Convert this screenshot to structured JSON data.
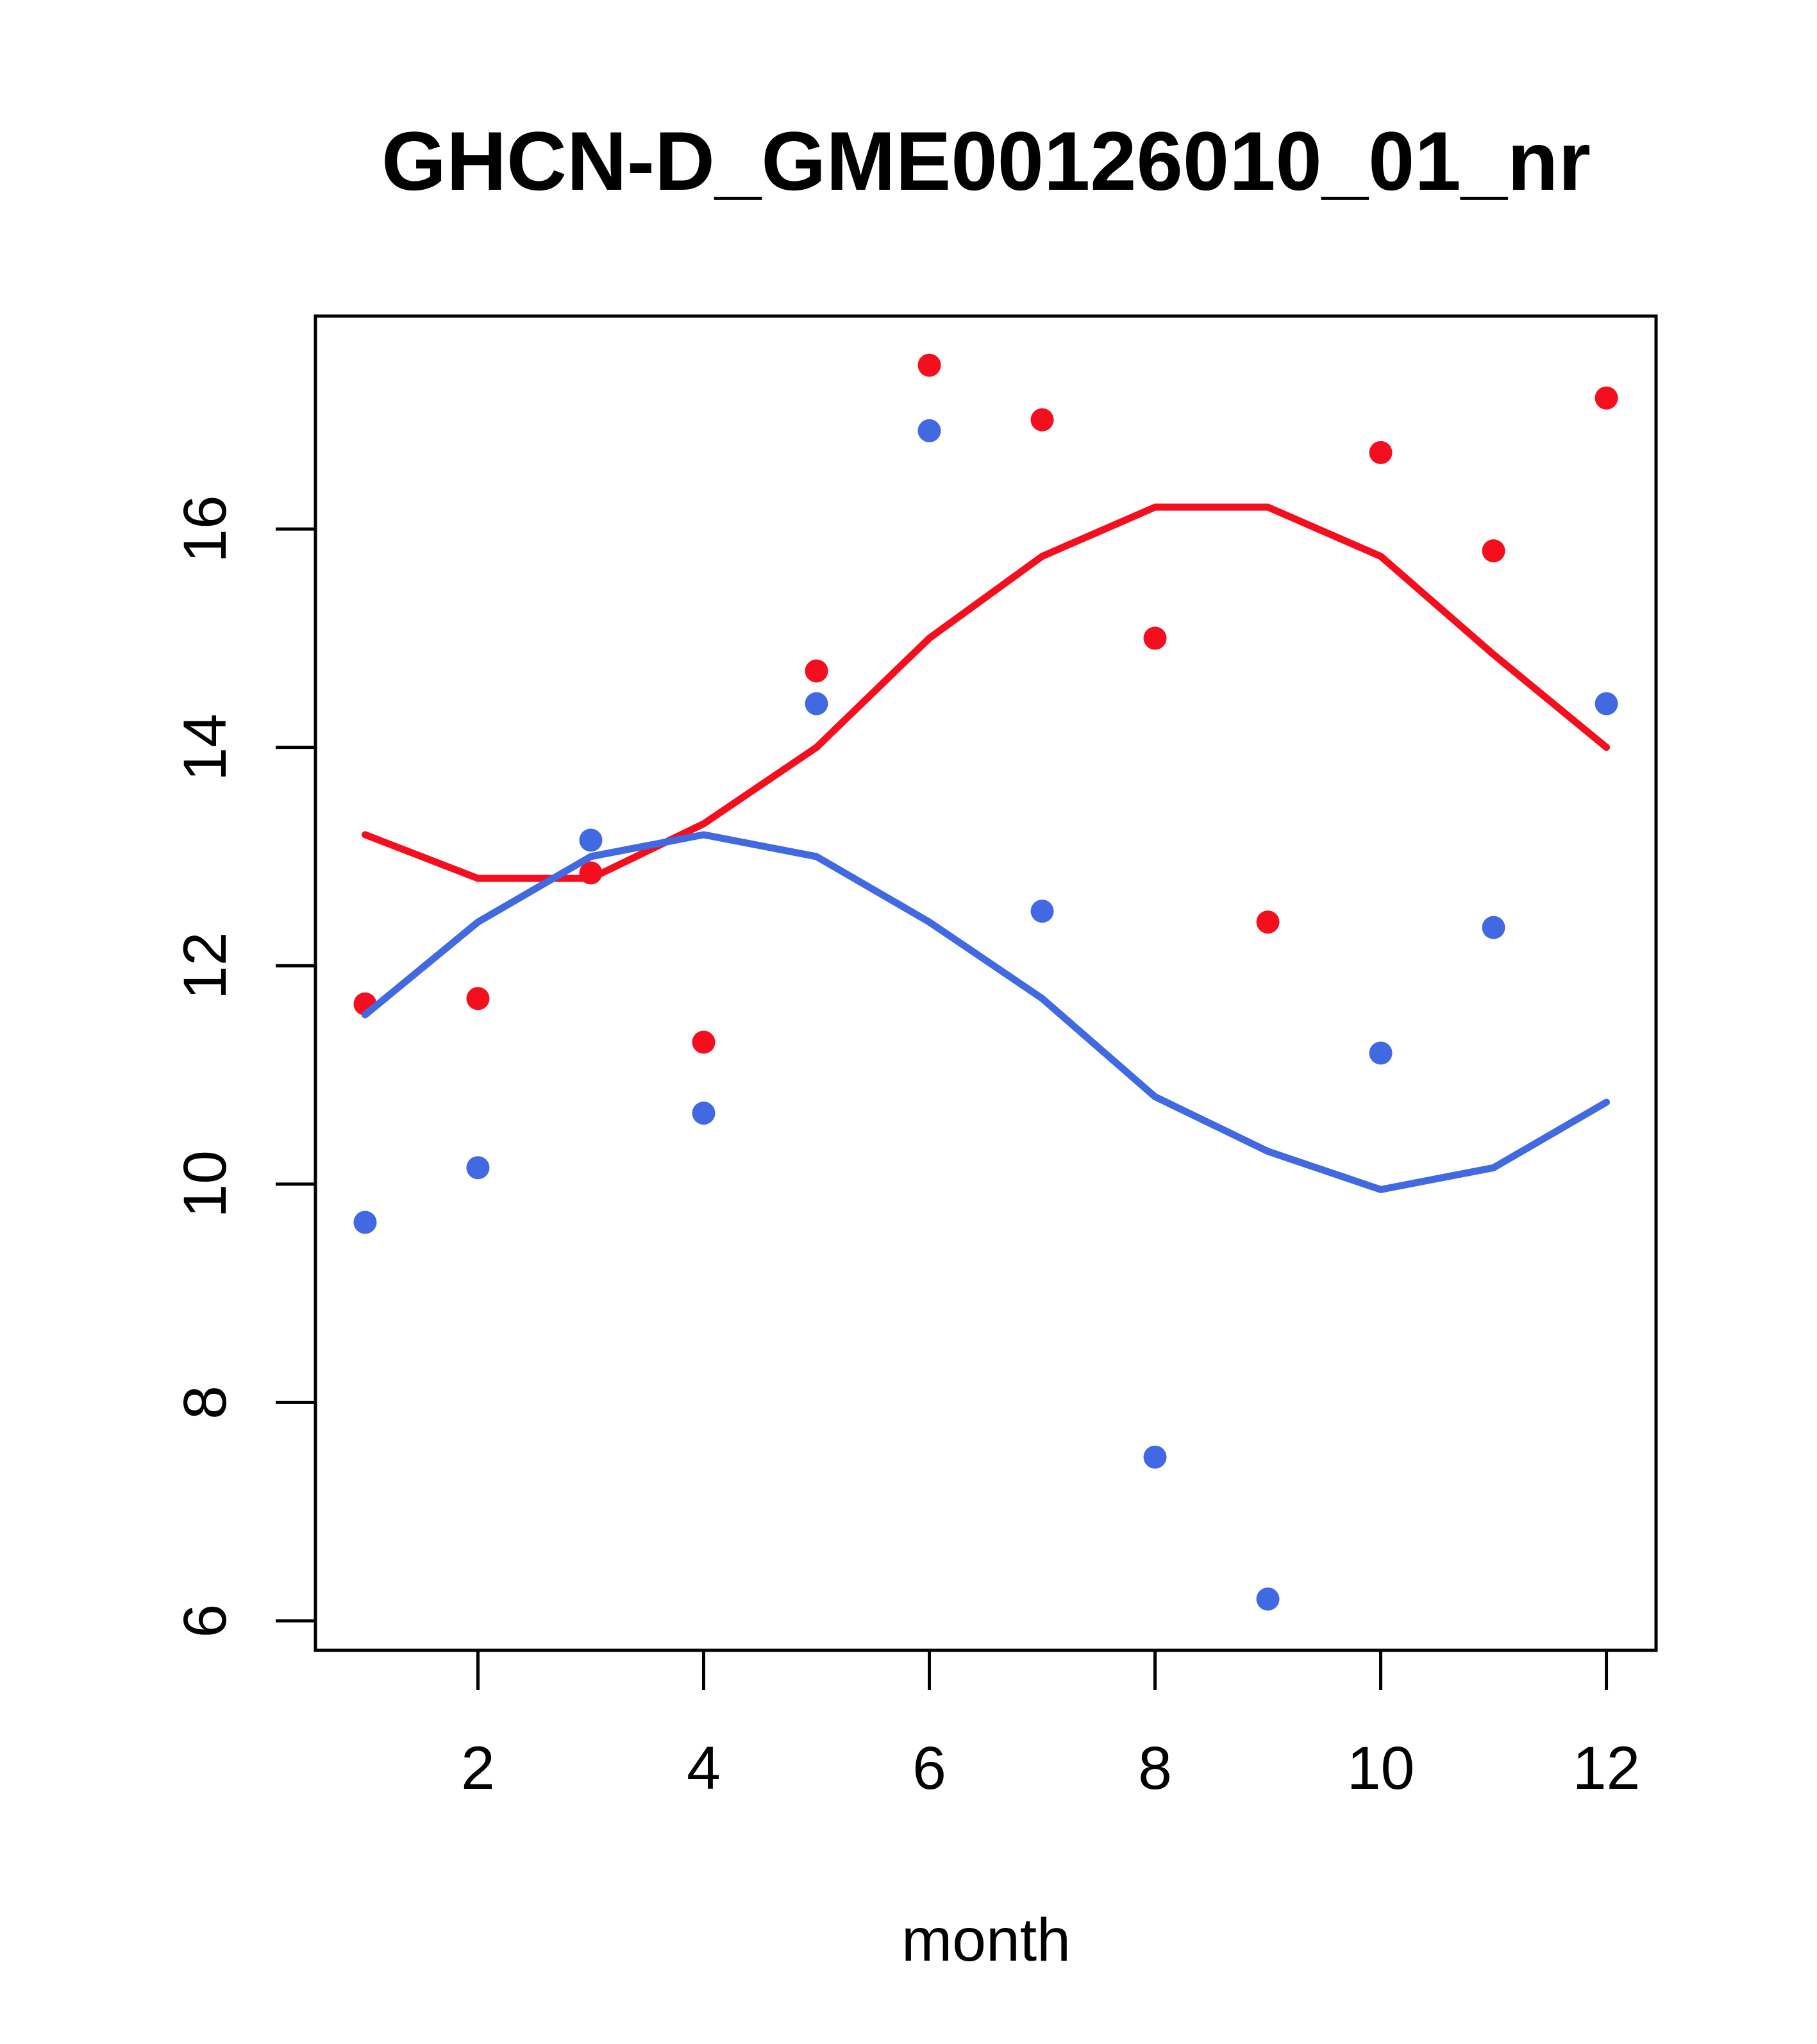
{
  "title": "GHCN-D_GME00126010_01_nr",
  "chart_data": {
    "type": "scatter",
    "title": "GHCN-D_GME00126010_01_nr",
    "xlabel": "month",
    "ylabel": "",
    "x": [
      1,
      2,
      3,
      4,
      5,
      6,
      7,
      8,
      9,
      10,
      11,
      12
    ],
    "xticks": [
      2,
      4,
      6,
      8,
      10,
      12
    ],
    "yticks": [
      6,
      8,
      10,
      12,
      14,
      16
    ],
    "xlim": [
      0.56,
      12.44
    ],
    "ylim": [
      5.73,
      17.95
    ],
    "grid": false,
    "legend": "none",
    "series": [
      {
        "name": "red-points",
        "kind": "points",
        "color": "#f50f1e",
        "values": [
          11.65,
          11.7,
          12.85,
          11.3,
          14.7,
          17.5,
          17.0,
          15.0,
          12.4,
          16.7,
          15.8,
          17.2
        ]
      },
      {
        "name": "blue-points",
        "kind": "points",
        "color": "#4169e1",
        "values": [
          9.65,
          10.15,
          13.15,
          10.65,
          14.4,
          16.9,
          12.5,
          7.5,
          6.2,
          11.2,
          12.35,
          14.4
        ]
      },
      {
        "name": "red-smooth",
        "kind": "line",
        "color": "#f50f1e",
        "values": [
          13.2,
          12.8,
          12.8,
          13.3,
          14.0,
          15.0,
          15.75,
          16.2,
          16.2,
          15.75,
          14.85,
          14.0
        ]
      },
      {
        "name": "blue-smooth",
        "kind": "line",
        "color": "#4169e1",
        "values": [
          11.55,
          12.4,
          13.0,
          13.2,
          13.0,
          12.4,
          11.7,
          10.8,
          10.3,
          9.95,
          10.15,
          10.75
        ]
      }
    ]
  }
}
